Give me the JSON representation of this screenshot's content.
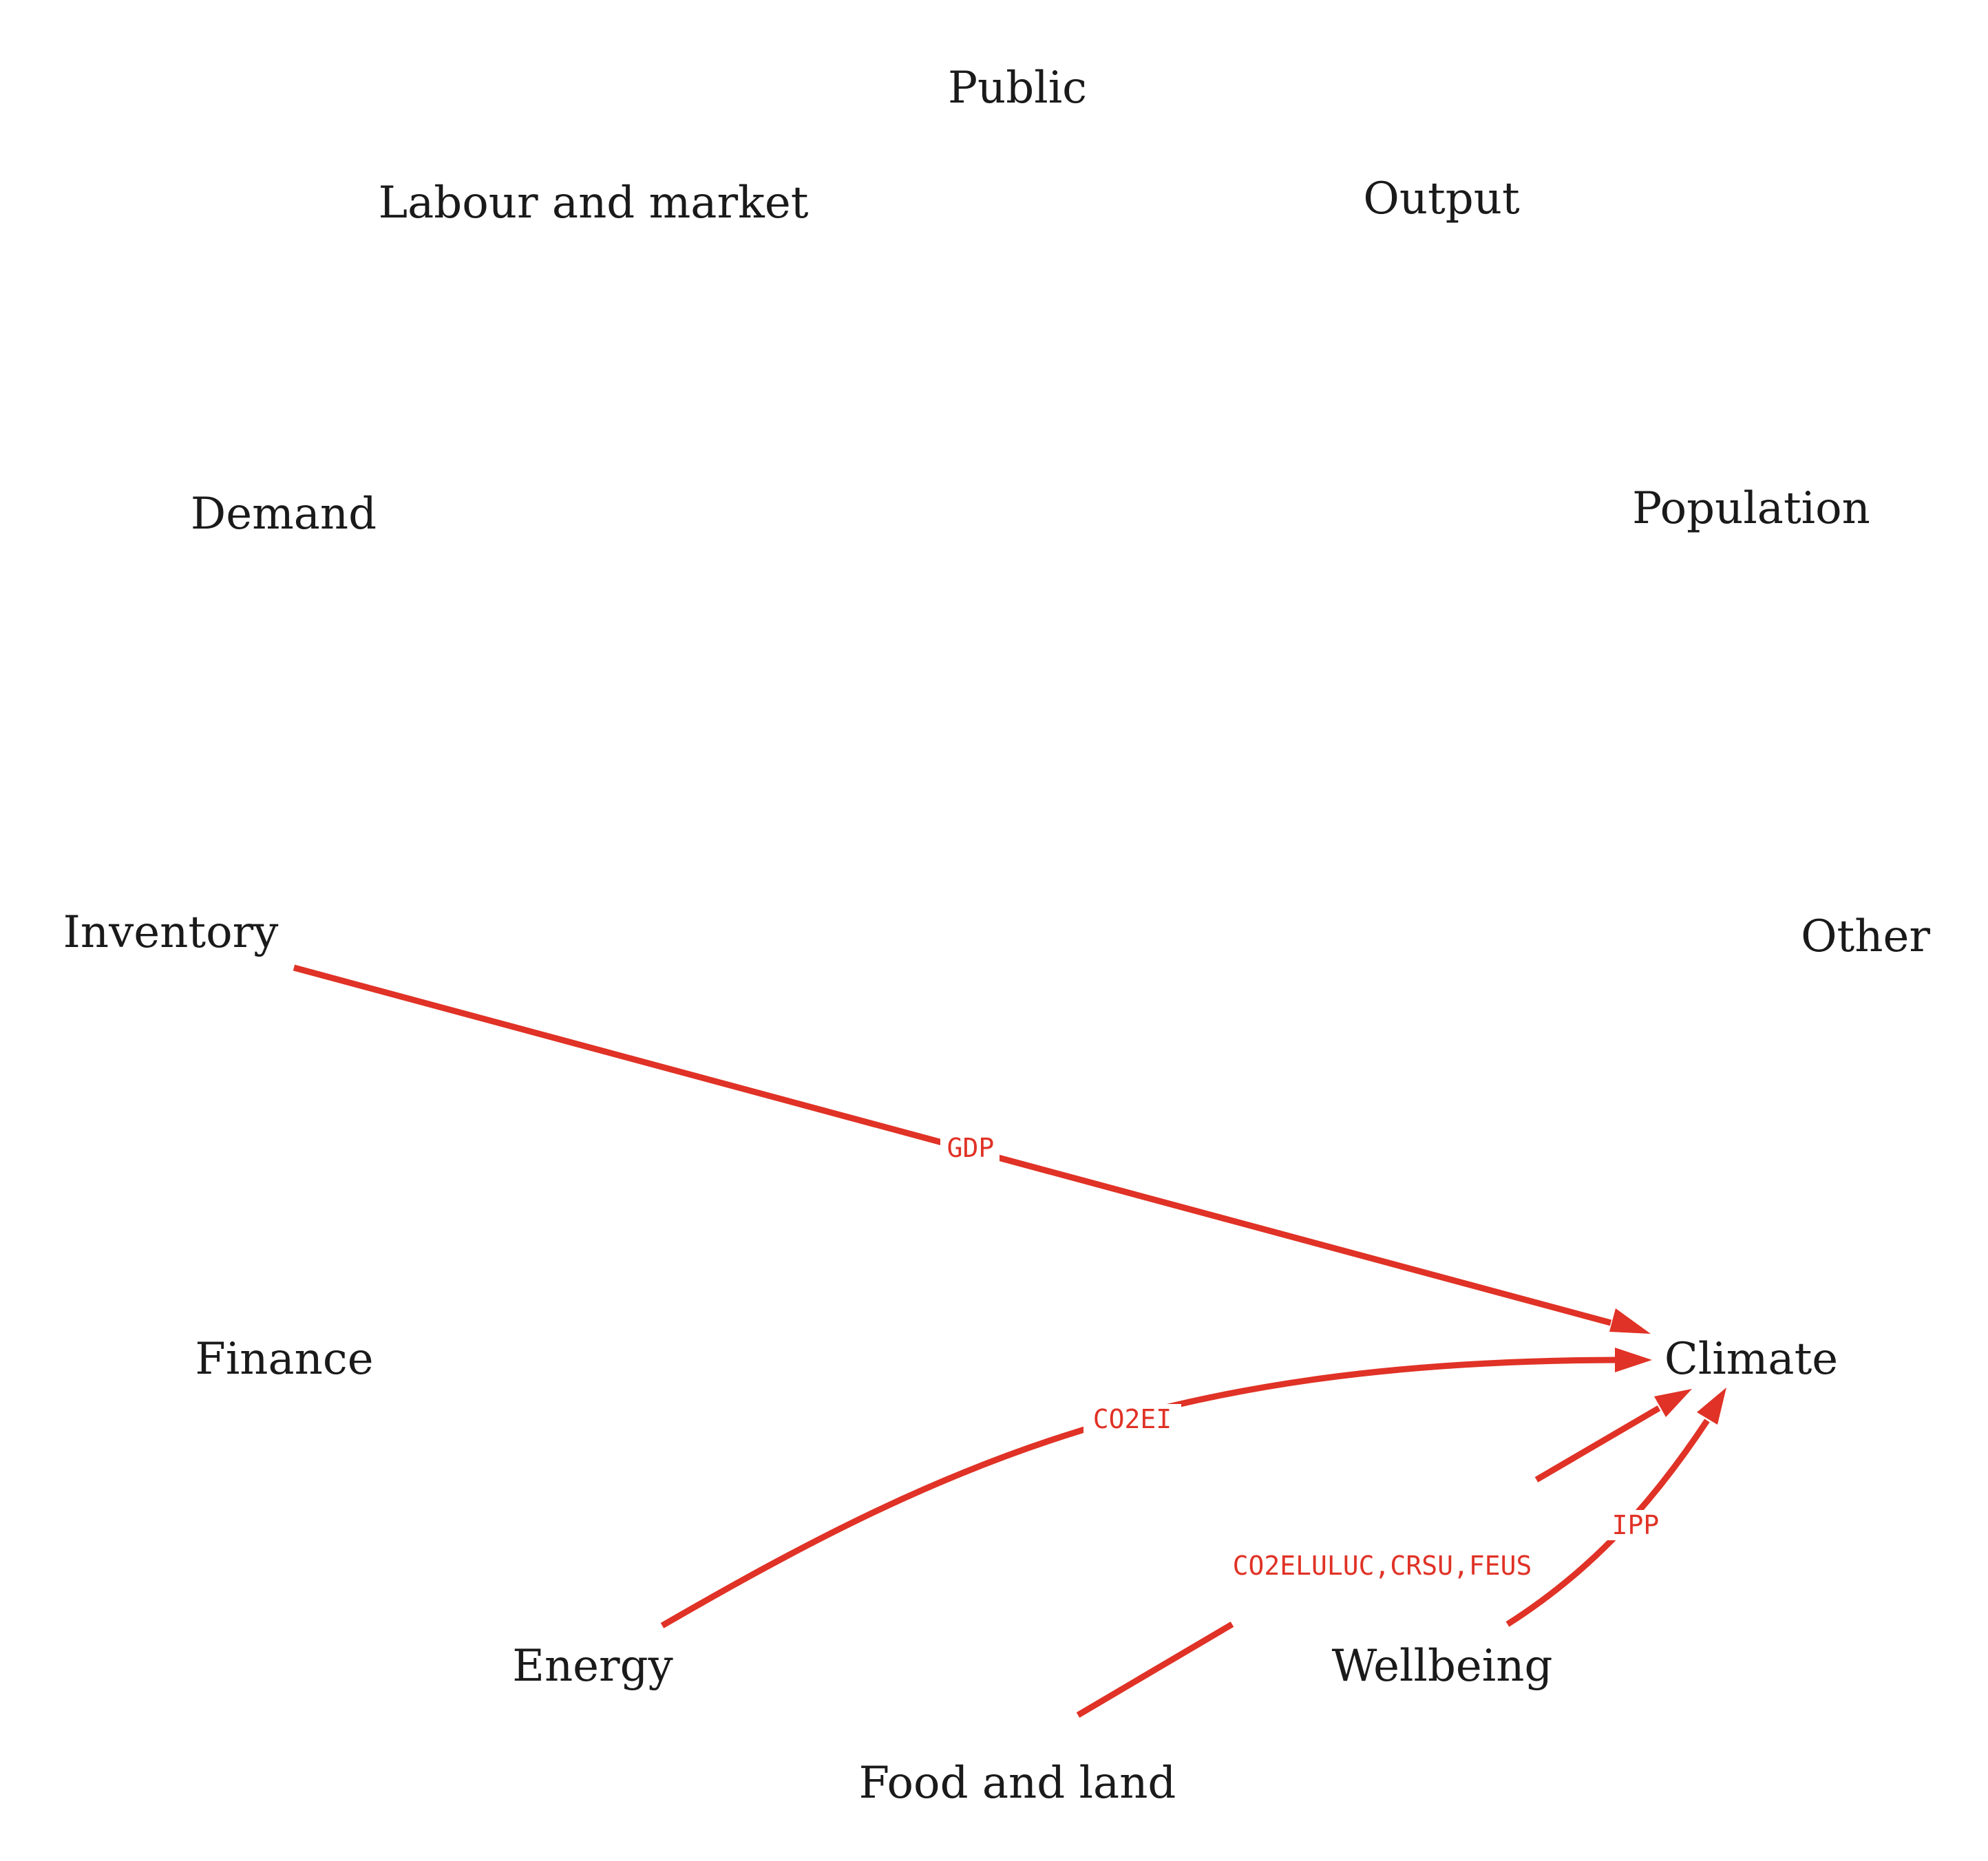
{
  "diagram": {
    "nodes": {
      "public": "Public",
      "output": "Output",
      "labour": "Labour and market",
      "population": "Population",
      "demand": "Demand",
      "other": "Other",
      "inventory": "Inventory",
      "climate": "Climate",
      "finance": "Finance",
      "wellbeing": "Wellbeing",
      "energy": "Energy",
      "food": "Food and land"
    },
    "edges": [
      {
        "from": "Inventory",
        "to": "Climate",
        "label": "GDP"
      },
      {
        "from": "Energy",
        "to": "Climate",
        "label": "CO2EI"
      },
      {
        "from": "Food and land",
        "to": "Climate",
        "label": "CO2ELULUC,CRSU,FEUS"
      },
      {
        "from": "Wellbeing",
        "to": "Climate",
        "label": "IPP"
      }
    ],
    "colors": {
      "edge": "#e03226",
      "text": "#1a1a1a",
      "background": "#ffffff"
    }
  }
}
